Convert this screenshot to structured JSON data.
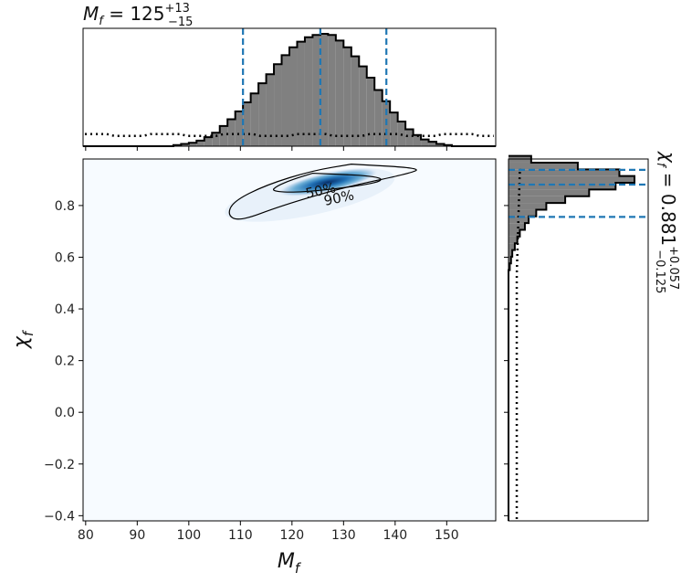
{
  "chart_data": [
    {
      "panel": "top-marginal",
      "type": "histogram",
      "variable": "M_f",
      "title": "M_f = 125 +13 −15",
      "title_parts": {
        "name": "M",
        "sub": "f",
        "eq": " = 125",
        "sup": "+13",
        "subv": "−15"
      },
      "xlim": [
        79.5,
        159.5
      ],
      "bin_edges_start": 97,
      "bin_width": 1.5,
      "posterior_heights": [
        0.01,
        0.02,
        0.03,
        0.05,
        0.08,
        0.12,
        0.18,
        0.24,
        0.31,
        0.39,
        0.47,
        0.56,
        0.64,
        0.73,
        0.81,
        0.88,
        0.93,
        0.97,
        0.99,
        1.0,
        0.99,
        0.94,
        0.88,
        0.8,
        0.71,
        0.61,
        0.5,
        0.4,
        0.3,
        0.22,
        0.15,
        0.1,
        0.06,
        0.04,
        0.02,
        0.01
      ],
      "prior_level": 0.1,
      "quantile_lines": [
        110.5,
        125.5,
        138.3
      ],
      "quantile_color": "#1f77b4"
    },
    {
      "panel": "joint",
      "type": "heatmap",
      "xlabel_parts": {
        "name": "M",
        "sub": "f"
      },
      "ylabel_parts": {
        "name": "χ",
        "sub": "f"
      },
      "xlim": [
        79.5,
        159.5
      ],
      "ylim": [
        -0.42,
        0.98
      ],
      "xticks": [
        80,
        90,
        100,
        110,
        120,
        130,
        140,
        150
      ],
      "yticks": [
        -0.4,
        -0.2,
        0.0,
        0.2,
        0.4,
        0.6,
        0.8
      ],
      "ytick_labels": [
        "−0.4",
        "−0.2",
        "0.0",
        "0.2",
        "0.4",
        "0.6",
        "0.8"
      ],
      "colormap": "Blues",
      "peak": {
        "x": 127,
        "y": 0.89
      },
      "contours": [
        {
          "label": "50%",
          "level": 0.5
        },
        {
          "label": "90%",
          "level": 0.9
        }
      ]
    },
    {
      "panel": "right-marginal",
      "type": "histogram",
      "variable": "chi_f",
      "title_parts": {
        "name": "χ",
        "sub": "f",
        "eq": " = 0.881",
        "sup": "+0.057",
        "subv": "−0.125"
      },
      "ylim": [
        -0.42,
        0.98
      ],
      "bin_edges_start": 0.55,
      "bin_width": 0.026,
      "posterior_heights": [
        0.01,
        0.02,
        0.03,
        0.05,
        0.07,
        0.09,
        0.13,
        0.16,
        0.22,
        0.3,
        0.45,
        0.64,
        0.85,
        1.0,
        0.88,
        0.55,
        0.18
      ],
      "prior_level": 0.08,
      "quantile_lines": [
        0.756,
        0.881,
        0.938
      ],
      "quantile_color": "#1f77b4"
    }
  ]
}
